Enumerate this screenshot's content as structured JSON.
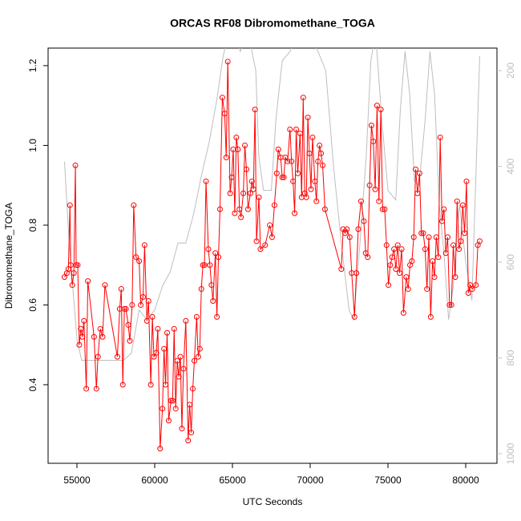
{
  "chart_data": {
    "type": "line",
    "title": "ORCAS RF08 Dibromomethane_TOGA",
    "x_label": "UTC Seconds",
    "y_label": "Dibromomethane_TOGA",
    "xlim": [
      53144,
      82010
    ],
    "ylim": [
      0.203,
      1.244
    ],
    "y2lim": [
      1020,
      153
    ],
    "xticks": [
      55000,
      60000,
      65000,
      70000,
      75000,
      80000
    ],
    "yticks": [
      0.4,
      0.6,
      0.8,
      {
        "value": 1,
        "label": "1.0"
      },
      1.2
    ],
    "y2ticks": [
      200,
      400,
      600,
      800,
      1000
    ],
    "y2_color": "#bebebe",
    "series": [
      {
        "color": "#bebebe",
        "axis": "y2",
        "markers": false,
        "x": [
          54200,
          54500,
          55000,
          55300,
          58000,
          58500,
          59000,
          59500,
          60000,
          60500,
          61000,
          61500,
          62000,
          62500,
          63000,
          63500,
          64000,
          64400,
          64700,
          65200,
          65500,
          66000,
          66500,
          66700,
          67000,
          67500,
          67800,
          68200,
          68700,
          69200,
          70000,
          70500,
          71000,
          71500,
          72000,
          72500,
          72800,
          73200,
          73600,
          73900,
          74200,
          74600,
          75000,
          75500,
          75800,
          76100,
          76400,
          76700,
          77000,
          77400,
          77700,
          78000,
          78300,
          78600,
          78900,
          79200,
          79600,
          80000,
          80400,
          80900
        ],
        "values": [
          390,
          560,
          760,
          805,
          805,
          790,
          700,
          720,
          700,
          650,
          620,
          560,
          560,
          500,
          420,
          350,
          260,
          170,
          130,
          120,
          160,
          120,
          200,
          380,
          450,
          450,
          300,
          180,
          160,
          120,
          130,
          160,
          200,
          400,
          560,
          700,
          720,
          560,
          380,
          180,
          120,
          300,
          450,
          470,
          280,
          160,
          250,
          430,
          440,
          300,
          160,
          250,
          480,
          580,
          720,
          650,
          480,
          600,
          680,
          170
        ]
      },
      {
        "color": "#ff0000",
        "markers": true,
        "x": [
          54200,
          54350,
          54450,
          54550,
          54600,
          54700,
          54800,
          54900,
          54950,
          55050,
          55150,
          55250,
          55350,
          55450,
          55600,
          55700,
          56100,
          56250,
          56350,
          56500,
          56650,
          56800,
          57600,
          57750,
          57850,
          57950,
          58050,
          58150,
          58300,
          58400,
          58550,
          58650,
          58800,
          59000,
          59100,
          59250,
          59350,
          59500,
          59600,
          59750,
          59850,
          59950,
          60100,
          60200,
          60350,
          60500,
          60600,
          60700,
          60800,
          60900,
          61050,
          61150,
          61250,
          61350,
          61450,
          61550,
          61650,
          61750,
          61850,
          62000,
          62150,
          62250,
          62350,
          62450,
          62550,
          62700,
          62800,
          62900,
          63000,
          63100,
          63200,
          63300,
          63450,
          63550,
          63650,
          63750,
          63900,
          64000,
          64100,
          64200,
          64350,
          64500,
          64600,
          64700,
          64850,
          64950,
          65050,
          65150,
          65250,
          65350,
          65450,
          65550,
          65700,
          65800,
          65900,
          66000,
          66150,
          66250,
          66350,
          66450,
          66550,
          66700,
          66800,
          67100,
          67400,
          67550,
          67700,
          67850,
          67950,
          68100,
          68200,
          68300,
          68400,
          68550,
          68700,
          68800,
          68900,
          69000,
          69100,
          69200,
          69350,
          69450,
          69550,
          69650,
          69750,
          69850,
          69950,
          70050,
          70150,
          70300,
          70400,
          70500,
          70600,
          70700,
          70800,
          70950,
          72000,
          72120,
          72240,
          72360,
          72540,
          72670,
          72850,
          72970,
          73090,
          73270,
          73450,
          73570,
          73700,
          73820,
          73940,
          74060,
          74180,
          74300,
          74420,
          74540,
          74660,
          74790,
          74910,
          75030,
          75150,
          75270,
          75390,
          75510,
          75630,
          75750,
          75880,
          76000,
          76180,
          76300,
          76420,
          76540,
          76660,
          76780,
          76900,
          77030,
          77150,
          77270,
          77390,
          77510,
          77630,
          77750,
          77870,
          77990,
          78110,
          78240,
          78360,
          78480,
          78600,
          78720,
          78840,
          78960,
          79080,
          79200,
          79330,
          79450,
          79570,
          79690,
          79810,
          79930,
          80050,
          80170,
          80290,
          80420,
          80660,
          80780,
          80900
        ],
        "values": [
          0.67,
          0.68,
          0.69,
          0.85,
          0.7,
          0.65,
          0.68,
          0.95,
          0.7,
          0.7,
          0.5,
          0.54,
          0.52,
          0.56,
          0.39,
          0.66,
          0.52,
          0.39,
          0.47,
          0.54,
          0.52,
          0.65,
          0.47,
          0.59,
          0.64,
          0.4,
          0.59,
          0.59,
          0.55,
          0.51,
          0.6,
          0.85,
          0.72,
          0.71,
          0.6,
          0.62,
          0.75,
          0.56,
          0.61,
          0.4,
          0.57,
          0.47,
          0.48,
          0.54,
          0.24,
          0.34,
          0.49,
          0.4,
          0.53,
          0.31,
          0.36,
          0.36,
          0.54,
          0.34,
          0.46,
          0.42,
          0.47,
          0.29,
          0.44,
          0.56,
          0.26,
          0.35,
          0.28,
          0.39,
          0.46,
          0.57,
          0.47,
          0.49,
          0.64,
          0.7,
          0.7,
          0.91,
          0.74,
          0.7,
          0.65,
          0.61,
          0.73,
          0.57,
          0.72,
          0.84,
          1.12,
          1.08,
          0.97,
          1.21,
          0.88,
          0.92,
          0.99,
          0.83,
          1.02,
          0.99,
          0.84,
          0.82,
          0.88,
          1.0,
          0.94,
          0.84,
          0.88,
          0.91,
          0.89,
          1.09,
          0.76,
          0.87,
          0.74,
          0.75,
          0.8,
          0.77,
          0.85,
          0.93,
          0.99,
          0.97,
          0.92,
          0.92,
          0.97,
          0.96,
          1.04,
          0.96,
          0.91,
          0.83,
          1.04,
          0.93,
          1.03,
          0.87,
          1.12,
          0.88,
          0.87,
          1.07,
          0.98,
          0.89,
          1.02,
          0.91,
          0.86,
          0.96,
          1.0,
          0.98,
          0.95,
          0.84,
          0.69,
          0.79,
          0.78,
          0.79,
          0.77,
          0.68,
          0.57,
          0.68,
          0.79,
          0.86,
          0.81,
          0.73,
          0.72,
          0.9,
          1.05,
          1.01,
          0.89,
          1.1,
          0.86,
          1.09,
          0.84,
          0.84,
          0.75,
          0.65,
          0.7,
          0.72,
          0.74,
          0.69,
          0.75,
          0.68,
          0.74,
          0.58,
          0.67,
          0.64,
          0.7,
          0.71,
          0.77,
          0.94,
          0.88,
          0.93,
          0.78,
          0.78,
          0.74,
          0.64,
          0.77,
          0.57,
          0.71,
          0.67,
          0.77,
          0.72,
          1.02,
          0.81,
          0.84,
          0.73,
          0.77,
          0.6,
          0.6,
          0.75,
          0.67,
          0.86,
          0.74,
          0.76,
          0.85,
          0.78,
          0.91,
          0.63,
          0.65,
          0.64,
          0.65,
          0.75,
          0.76
        ]
      }
    ]
  }
}
